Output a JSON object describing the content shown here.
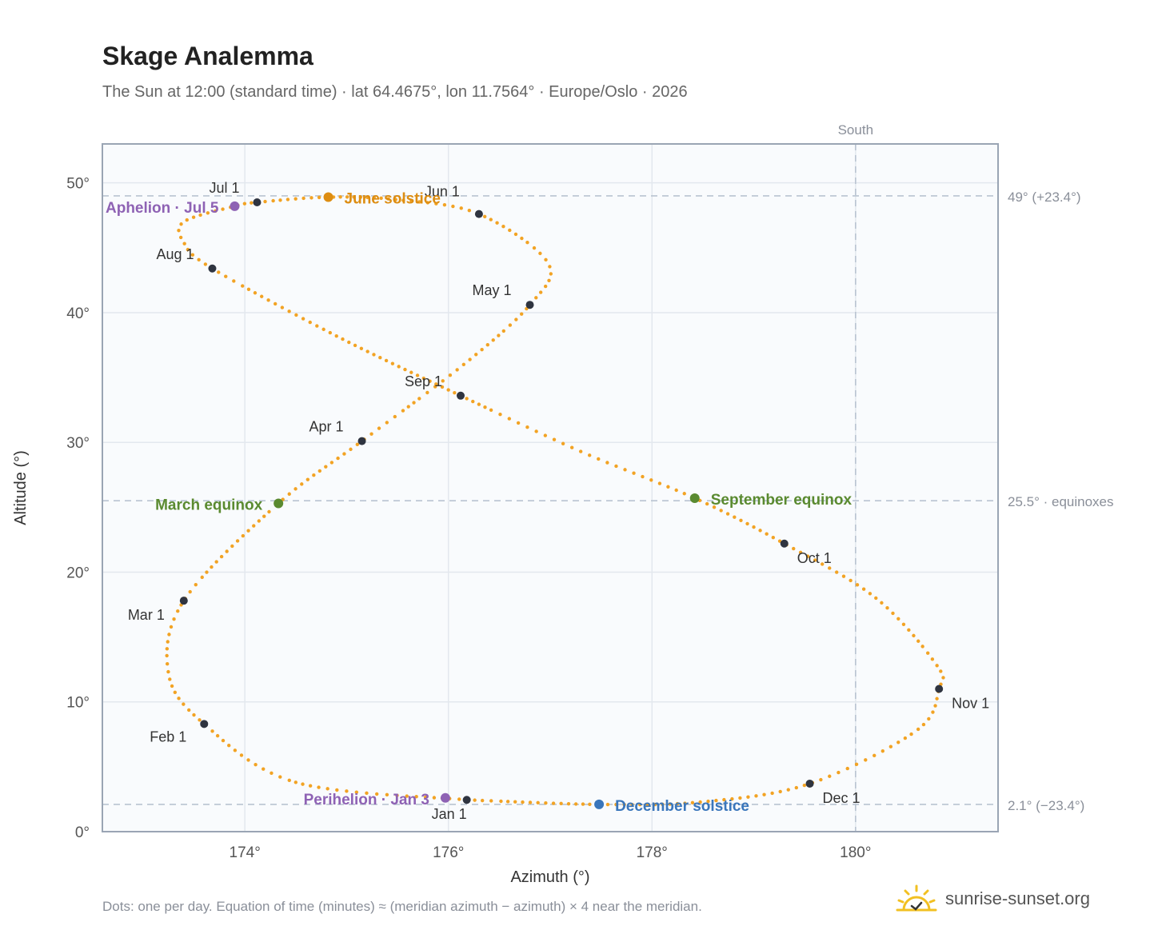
{
  "title": "Skage Analemma",
  "subtitle": "The Sun at 12:00 (standard time) · lat 64.4675°, lon 11.7564° · Europe/Oslo · 2026",
  "footnote": "Dots: one per day. Equation of time (minutes) ≈ (meridian azimuth − azimuth) × 4 near the meridian.",
  "brand": {
    "name": "sunrise-sunset.org",
    "logo_icon": "sun-logo-icon"
  },
  "colors": {
    "path": "#f2a324",
    "month": "#2f3440",
    "solstice_june": "#dd8d12",
    "equinox": "#5a8a30",
    "apsis": "#8e62b4",
    "solstice_december": "#3a76bb",
    "reference": "#b9c4d1"
  },
  "chart_data": {
    "type": "scatter",
    "xlabel": "Azimuth (°)",
    "ylabel": "Altitude (°)",
    "xlim": [
      172.6,
      181.4
    ],
    "ylim": [
      0,
      53
    ],
    "xticks": [
      174,
      176,
      178,
      180
    ],
    "yticks": [
      0,
      10,
      20,
      30,
      40,
      50
    ],
    "xtick_labels": [
      "174°",
      "176°",
      "178°",
      "180°"
    ],
    "ytick_labels": [
      "0°",
      "10°",
      "20°",
      "30°",
      "40°",
      "50°"
    ],
    "grid": true,
    "south_line": {
      "azimuth": 180,
      "label": "South"
    },
    "reference_lines": [
      {
        "altitude": 49.0,
        "label": "49° (+23.4°)"
      },
      {
        "altitude": 25.5,
        "label": "25.5° · equinoxes"
      },
      {
        "altitude": 2.1,
        "label": "2.1° (−23.4°)"
      }
    ],
    "path_knots": [
      [
        176.18,
        2.45
      ],
      [
        174.5,
        3.8
      ],
      [
        173.6,
        8.3
      ],
      [
        173.25,
        12.2
      ],
      [
        173.4,
        17.8
      ],
      [
        174.33,
        25.3
      ],
      [
        175.15,
        30.1
      ],
      [
        176.15,
        36.0
      ],
      [
        176.8,
        40.6
      ],
      [
        176.98,
        43.8
      ],
      [
        176.3,
        47.6
      ],
      [
        175.5,
        48.7
      ],
      [
        174.82,
        48.9
      ],
      [
        174.12,
        48.5
      ],
      [
        173.9,
        48.2
      ],
      [
        173.4,
        47.0
      ],
      [
        173.4,
        45.4
      ],
      [
        173.68,
        43.4
      ],
      [
        174.9,
        38.2
      ],
      [
        176.12,
        33.6
      ],
      [
        177.3,
        29.3
      ],
      [
        178.42,
        25.7
      ],
      [
        179.3,
        22.2
      ],
      [
        180.2,
        18.0
      ],
      [
        180.8,
        12.8
      ],
      [
        180.82,
        11.0
      ],
      [
        180.6,
        7.8
      ],
      [
        179.55,
        3.7
      ],
      [
        178.5,
        2.3
      ],
      [
        177.48,
        2.1
      ],
      [
        176.18,
        2.45
      ]
    ],
    "month_markers": [
      {
        "label": "Jan 1",
        "azimuth": 176.18,
        "altitude": 2.45
      },
      {
        "label": "Feb 1",
        "azimuth": 173.6,
        "altitude": 8.3
      },
      {
        "label": "Mar 1",
        "azimuth": 173.4,
        "altitude": 17.8
      },
      {
        "label": "Apr 1",
        "azimuth": 175.15,
        "altitude": 30.1
      },
      {
        "label": "May 1",
        "azimuth": 176.8,
        "altitude": 40.6
      },
      {
        "label": "Jun 1",
        "azimuth": 176.3,
        "altitude": 47.6
      },
      {
        "label": "Jul 1",
        "azimuth": 174.12,
        "altitude": 48.5
      },
      {
        "label": "Aug 1",
        "azimuth": 173.68,
        "altitude": 43.4
      },
      {
        "label": "Sep 1",
        "azimuth": 176.12,
        "altitude": 33.6
      },
      {
        "label": "Oct 1",
        "azimuth": 179.3,
        "altitude": 22.2
      },
      {
        "label": "Nov 1",
        "azimuth": 180.82,
        "altitude": 11.0
      },
      {
        "label": "Dec 1",
        "azimuth": 179.55,
        "altitude": 3.7
      }
    ],
    "events": [
      {
        "label": "June solstice",
        "azimuth": 174.82,
        "altitude": 48.9,
        "kind": "solstice_june"
      },
      {
        "label": "Aphelion · Jul 5",
        "azimuth": 173.9,
        "altitude": 48.2,
        "kind": "apsis"
      },
      {
        "label": "March equinox",
        "azimuth": 174.33,
        "altitude": 25.3,
        "kind": "equinox"
      },
      {
        "label": "September equinox",
        "azimuth": 178.42,
        "altitude": 25.7,
        "kind": "equinox"
      },
      {
        "label": "Perihelion · Jan 3",
        "azimuth": 175.97,
        "altitude": 2.6,
        "kind": "apsis"
      },
      {
        "label": "December solstice",
        "azimuth": 177.48,
        "altitude": 2.1,
        "kind": "solstice_december"
      }
    ]
  }
}
